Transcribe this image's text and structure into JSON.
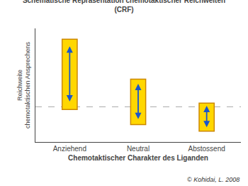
{
  "chart_data": {
    "type": "bar",
    "title": "Schematische Repräsentation chemotaktischer Reichweiten\n(CRF)",
    "xlabel": "Chemotaktischer Charakter des Liganden",
    "ylabel": "Reichweite\nchemotaktischen Ansprechens",
    "note": "© Kohidai, L. 2008",
    "categories": [
      "Anziehend",
      "Neutral",
      "Abstossend"
    ],
    "series": [
      {
        "bottom": [
          0.3,
          0.16,
          0.1
        ],
        "top": [
          0.95,
          0.58,
          0.36
        ],
        "color": "#FFD700",
        "edge_color": "#CC8800"
      }
    ],
    "arrow_color": "#1a56cc",
    "reference_line": {
      "y": 0.325,
      "color": "#aaaaaa",
      "line_style": "dashed"
    },
    "ylim": [
      0.0,
      1.05
    ],
    "yticks": [],
    "tick_labels": "x",
    "grid": false
  }
}
